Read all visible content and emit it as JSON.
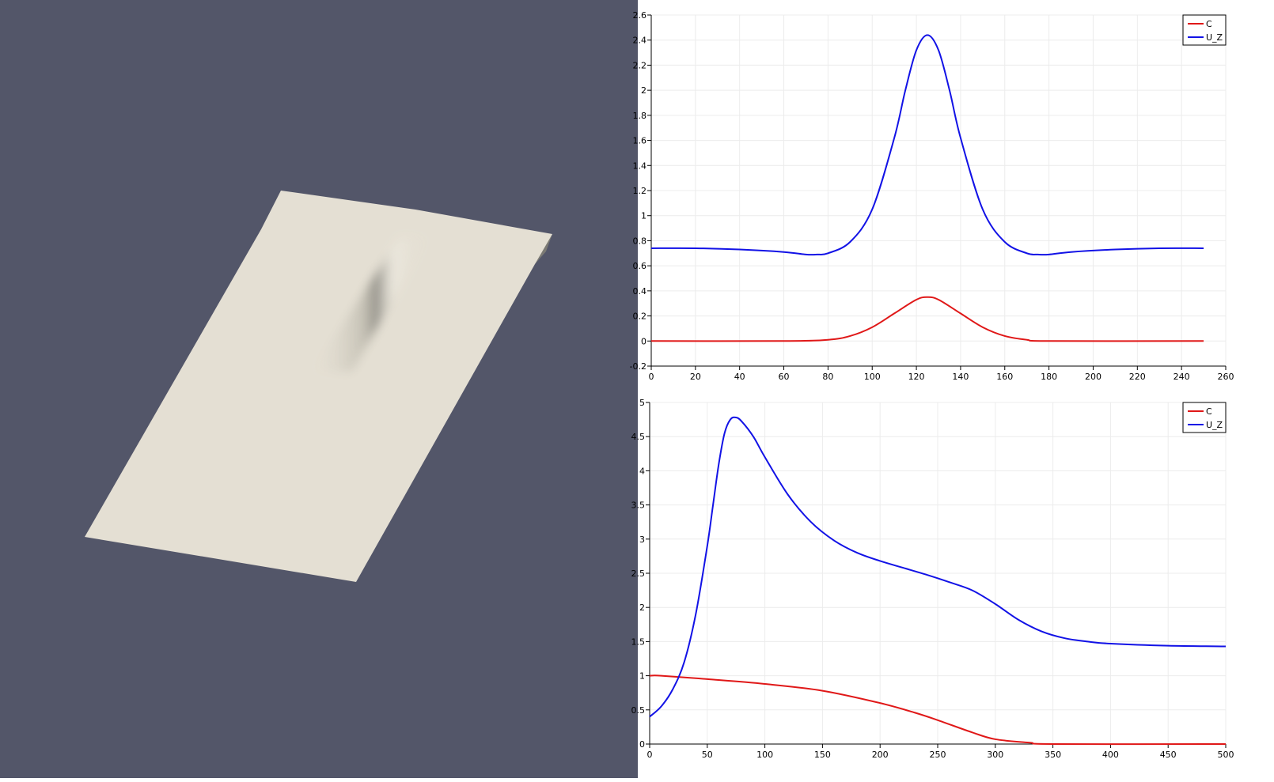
{
  "render_view": {
    "background": "#535669",
    "surface_color": "#e4dfd3",
    "shadow_color": "#7b7a74"
  },
  "chart_data": [
    {
      "type": "line",
      "title": "",
      "xlabel": "",
      "ylabel": "",
      "xlim": [
        0,
        260
      ],
      "ylim": [
        -0.2,
        2.6
      ],
      "xticks": [
        0,
        20,
        40,
        60,
        80,
        100,
        120,
        140,
        160,
        180,
        200,
        220,
        240,
        260
      ],
      "yticks": [
        -0.2,
        0,
        0.2,
        0.4,
        0.6,
        0.8,
        1,
        1.2,
        1.4,
        1.6,
        1.8,
        2,
        2.2,
        2.4,
        2.6
      ],
      "grid": true,
      "legend": "top-right",
      "series": [
        {
          "name": "C",
          "color": "#e01818",
          "points": [
            [
              0,
              0
            ],
            [
              60,
              0
            ],
            [
              80,
              0.01
            ],
            [
              90,
              0.04
            ],
            [
              100,
              0.11
            ],
            [
              110,
              0.22
            ],
            [
              120,
              0.33
            ],
            [
              125,
              0.35
            ],
            [
              130,
              0.33
            ],
            [
              140,
              0.22
            ],
            [
              150,
              0.11
            ],
            [
              160,
              0.04
            ],
            [
              170,
              0.01
            ],
            [
              180,
              0
            ],
            [
              250,
              0
            ]
          ]
        },
        {
          "name": "U_Z",
          "color": "#1212e6",
          "points": [
            [
              0,
              0.74
            ],
            [
              20,
              0.74
            ],
            [
              40,
              0.73
            ],
            [
              60,
              0.71
            ],
            [
              70,
              0.69
            ],
            [
              75,
              0.69
            ],
            [
              80,
              0.7
            ],
            [
              90,
              0.79
            ],
            [
              100,
              1.05
            ],
            [
              110,
              1.62
            ],
            [
              115,
              2.0
            ],
            [
              120,
              2.32
            ],
            [
              125,
              2.44
            ],
            [
              130,
              2.32
            ],
            [
              135,
              2.0
            ],
            [
              140,
              1.62
            ],
            [
              150,
              1.05
            ],
            [
              160,
              0.79
            ],
            [
              170,
              0.7
            ],
            [
              175,
              0.69
            ],
            [
              180,
              0.69
            ],
            [
              190,
              0.71
            ],
            [
              210,
              0.73
            ],
            [
              230,
              0.74
            ],
            [
              250,
              0.74
            ]
          ]
        }
      ]
    },
    {
      "type": "line",
      "title": "",
      "xlabel": "",
      "ylabel": "",
      "xlim": [
        0,
        500
      ],
      "ylim": [
        0,
        5
      ],
      "xticks": [
        0,
        50,
        100,
        150,
        200,
        250,
        300,
        350,
        400,
        450,
        500
      ],
      "yticks": [
        0,
        0.5,
        1,
        1.5,
        2,
        2.5,
        3,
        3.5,
        4,
        4.5,
        5
      ],
      "grid": true,
      "legend": "top-right",
      "series": [
        {
          "name": "C",
          "color": "#e01818",
          "points": [
            [
              0,
              1.0
            ],
            [
              10,
              1.0
            ],
            [
              50,
              0.95
            ],
            [
              100,
              0.88
            ],
            [
              150,
              0.78
            ],
            [
              200,
              0.6
            ],
            [
              230,
              0.46
            ],
            [
              250,
              0.35
            ],
            [
              280,
              0.17
            ],
            [
              300,
              0.07
            ],
            [
              330,
              0.02
            ],
            [
              350,
              0.0
            ],
            [
              500,
              0.0
            ]
          ]
        },
        {
          "name": "U_Z",
          "color": "#1212e6",
          "points": [
            [
              0,
              0.4
            ],
            [
              10,
              0.55
            ],
            [
              20,
              0.8
            ],
            [
              30,
              1.2
            ],
            [
              40,
              1.9
            ],
            [
              50,
              2.9
            ],
            [
              55,
              3.5
            ],
            [
              60,
              4.1
            ],
            [
              65,
              4.55
            ],
            [
              70,
              4.75
            ],
            [
              75,
              4.78
            ],
            [
              80,
              4.72
            ],
            [
              90,
              4.5
            ],
            [
              100,
              4.2
            ],
            [
              120,
              3.65
            ],
            [
              140,
              3.25
            ],
            [
              160,
              2.98
            ],
            [
              180,
              2.8
            ],
            [
              200,
              2.68
            ],
            [
              220,
              2.58
            ],
            [
              240,
              2.48
            ],
            [
              260,
              2.37
            ],
            [
              280,
              2.25
            ],
            [
              300,
              2.05
            ],
            [
              320,
              1.82
            ],
            [
              340,
              1.65
            ],
            [
              360,
              1.55
            ],
            [
              380,
              1.5
            ],
            [
              400,
              1.47
            ],
            [
              450,
              1.44
            ],
            [
              500,
              1.43
            ]
          ]
        }
      ]
    }
  ]
}
